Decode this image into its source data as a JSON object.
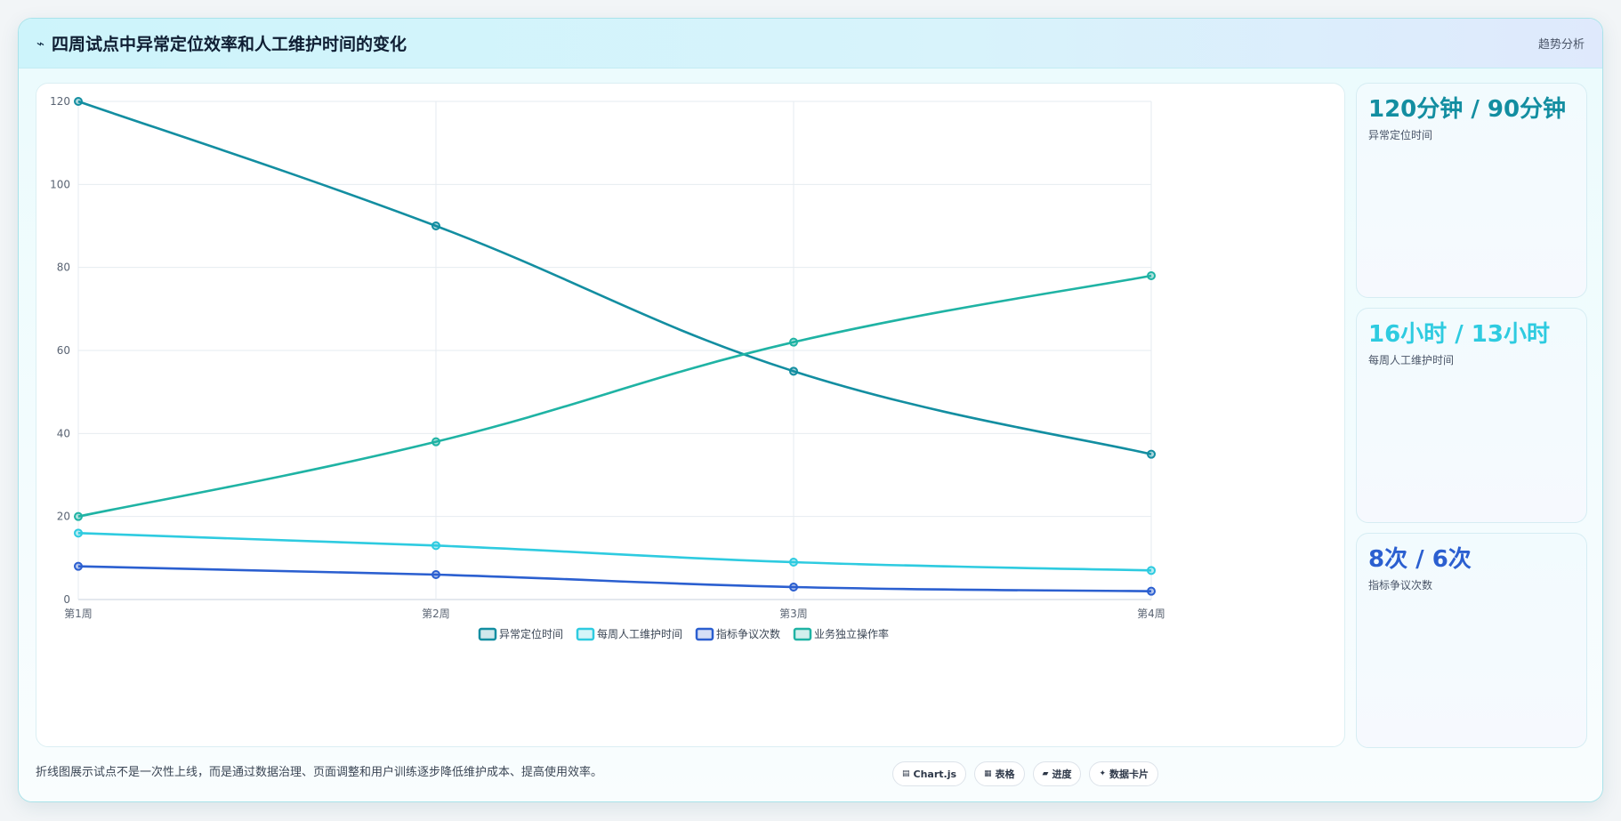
{
  "header": {
    "icon": "chart-line-icon",
    "icon_glyph": "⌁",
    "title": "四周试点中异常定位效率和人工维护时间的变化",
    "tag": "趋势分析"
  },
  "chart_data": {
    "type": "line",
    "categories": [
      "第1周",
      "第2周",
      "第3周",
      "第4周"
    ],
    "ylim": [
      0,
      120
    ],
    "yticks": [
      0,
      20,
      40,
      60,
      80,
      100,
      120
    ],
    "grid": true,
    "legend_position": "bottom",
    "series": [
      {
        "name": "异常定位时间",
        "color": "#138ea1",
        "values": [
          120,
          90,
          55,
          35
        ]
      },
      {
        "name": "每周人工维护时间",
        "color": "#2ecbe0",
        "values": [
          16,
          13,
          9,
          7
        ]
      },
      {
        "name": "指标争议次数",
        "color": "#2b5fd0",
        "values": [
          8,
          6,
          3,
          2
        ]
      },
      {
        "name": "业务独立操作率",
        "color": "#1fb3a4",
        "values": [
          20,
          38,
          62,
          78
        ]
      }
    ]
  },
  "kpis": [
    {
      "value": "120分钟 / 90分钟",
      "label": "异常定位时间",
      "color": "#138ea1"
    },
    {
      "value": "16小时 / 13小时",
      "label": "每周人工维护时间",
      "color": "#2ecbe0"
    },
    {
      "value": "8次 / 6次",
      "label": "指标争议次数",
      "color": "#2b5fd0"
    }
  ],
  "footer": {
    "note": "折线图展示试点不是一次性上线，而是通过数据治理、页面调整和用户训练逐步降低维护成本、提高使用效率。",
    "chips": [
      {
        "icon": "chart-icon",
        "glyph": "▤",
        "label": "Chart.js"
      },
      {
        "icon": "table-icon",
        "glyph": "▦",
        "label": "表格"
      },
      {
        "icon": "progress-icon",
        "glyph": "▰",
        "label": "进度"
      },
      {
        "icon": "card-icon",
        "glyph": "✦",
        "label": "数据卡片"
      }
    ]
  }
}
